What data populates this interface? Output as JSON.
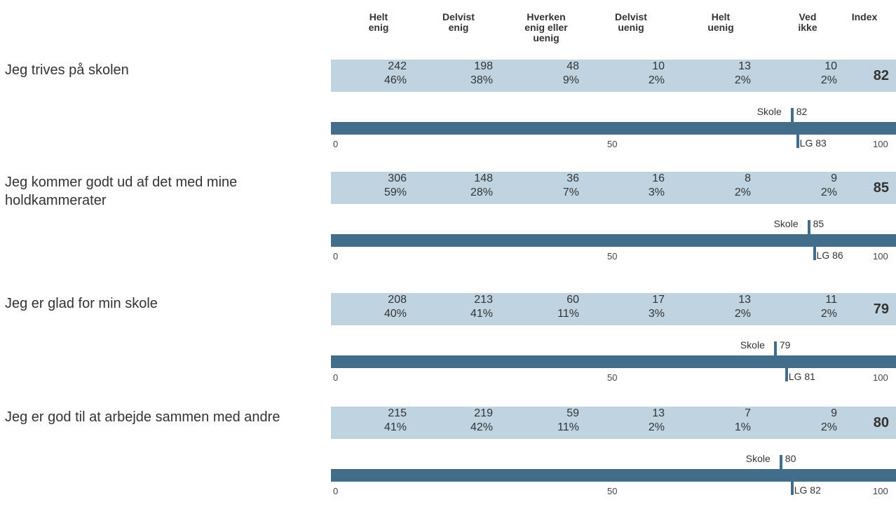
{
  "columns": [
    {
      "line1": "Helt",
      "line2": "enig",
      "line3": ""
    },
    {
      "line1": "Delvist",
      "line2": "enig",
      "line3": ""
    },
    {
      "line1": "Hverken",
      "line2": "enig eller",
      "line3": "uenig"
    },
    {
      "line1": "Delvist",
      "line2": "uenig",
      "line3": ""
    },
    {
      "line1": "Helt",
      "line2": "uenig",
      "line3": ""
    },
    {
      "line1": "Ved",
      "line2": "ikke",
      "line3": ""
    },
    {
      "line1": "Index",
      "line2": "",
      "line3": ""
    }
  ],
  "scale_ticks": {
    "min": "0",
    "mid": "50",
    "max": "100"
  },
  "school_label": "Skole",
  "colors": {
    "cell_bg": "#bfd4e0",
    "bar": "#426e8b",
    "text": "#333333"
  },
  "questions": [
    {
      "label": "Jeg trives på skolen",
      "counts": [
        "242",
        "198",
        "48",
        "10",
        "13",
        "10"
      ],
      "percents": [
        "46%",
        "38%",
        "9%",
        "2%",
        "2%",
        "2%"
      ],
      "index": "82",
      "school_value": "82",
      "lg_text": "LG 83",
      "school_score": 82,
      "lg_score": 83
    },
    {
      "label": "Jeg kommer godt ud af det med mine holdkammerater",
      "counts": [
        "306",
        "148",
        "36",
        "16",
        "8",
        "9"
      ],
      "percents": [
        "59%",
        "28%",
        "7%",
        "3%",
        "2%",
        "2%"
      ],
      "index": "85",
      "school_value": "85",
      "lg_text": "LG 86",
      "school_score": 85,
      "lg_score": 86
    },
    {
      "label": "Jeg er glad for min skole",
      "counts": [
        "208",
        "213",
        "60",
        "17",
        "13",
        "11"
      ],
      "percents": [
        "40%",
        "41%",
        "11%",
        "3%",
        "2%",
        "2%"
      ],
      "index": "79",
      "school_value": "79",
      "lg_text": "LG 81",
      "school_score": 79,
      "lg_score": 81
    },
    {
      "label": "Jeg er god til at arbejde sammen med andre",
      "counts": [
        "215",
        "219",
        "59",
        "13",
        "7",
        "9"
      ],
      "percents": [
        "41%",
        "42%",
        "11%",
        "2%",
        "1%",
        "2%"
      ],
      "index": "80",
      "school_value": "80",
      "lg_text": "LG 82",
      "school_score": 80,
      "lg_score": 82
    }
  ]
}
